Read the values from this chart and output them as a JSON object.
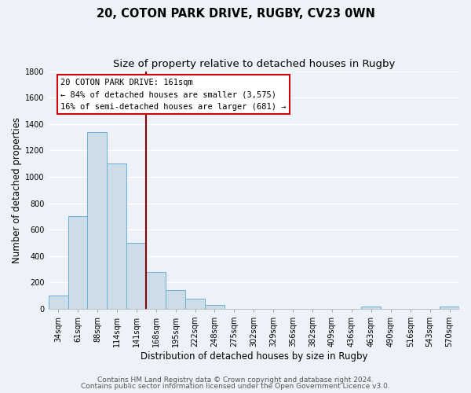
{
  "title": "20, COTON PARK DRIVE, RUGBY, CV23 0WN",
  "subtitle": "Size of property relative to detached houses in Rugby",
  "xlabel": "Distribution of detached houses by size in Rugby",
  "ylabel": "Number of detached properties",
  "bar_labels": [
    "34sqm",
    "61sqm",
    "88sqm",
    "114sqm",
    "141sqm",
    "168sqm",
    "195sqm",
    "222sqm",
    "248sqm",
    "275sqm",
    "302sqm",
    "329sqm",
    "356sqm",
    "382sqm",
    "409sqm",
    "436sqm",
    "463sqm",
    "490sqm",
    "516sqm",
    "543sqm",
    "570sqm"
  ],
  "bar_heights": [
    100,
    700,
    1340,
    1100,
    500,
    280,
    140,
    75,
    30,
    0,
    0,
    0,
    0,
    0,
    0,
    0,
    20,
    0,
    0,
    0,
    20
  ],
  "bar_color": "#ccdce8",
  "bar_edge_color": "#6aafd4",
  "ylim": [
    0,
    1800
  ],
  "yticks": [
    0,
    200,
    400,
    600,
    800,
    1000,
    1200,
    1400,
    1600,
    1800
  ],
  "vline_x": 4.5,
  "vline_color": "#8b0000",
  "annotation_title": "20 COTON PARK DRIVE: 161sqm",
  "annotation_line1": "← 84% of detached houses are smaller (3,575)",
  "annotation_line2": "16% of semi-detached houses are larger (681) →",
  "box_color": "#ffffff",
  "box_edge_color": "#cc0000",
  "footer1": "Contains HM Land Registry data © Crown copyright and database right 2024.",
  "footer2": "Contains public sector information licensed under the Open Government Licence v3.0.",
  "background_color": "#edf2f8",
  "grid_color": "#ffffff",
  "title_fontsize": 10.5,
  "subtitle_fontsize": 9.5,
  "axis_label_fontsize": 8.5,
  "tick_fontsize": 7,
  "annotation_fontsize": 7.5,
  "footer_fontsize": 6.5
}
